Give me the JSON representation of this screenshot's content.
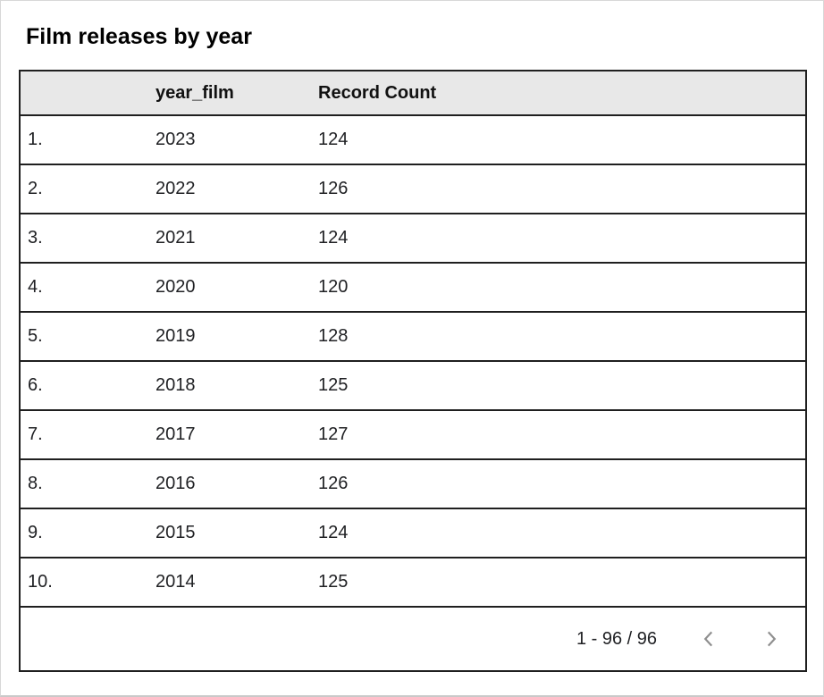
{
  "card": {
    "title": "Film releases by year"
  },
  "table": {
    "header": {
      "index_label": "",
      "columns": [
        "year_film",
        "Record Count"
      ]
    },
    "rows": [
      {
        "num": "1.",
        "year": "2023",
        "count": "124"
      },
      {
        "num": "2.",
        "year": "2022",
        "count": "126"
      },
      {
        "num": "3.",
        "year": "2021",
        "count": "124"
      },
      {
        "num": "4.",
        "year": "2020",
        "count": "120"
      },
      {
        "num": "5.",
        "year": "2019",
        "count": "128"
      },
      {
        "num": "6.",
        "year": "2018",
        "count": "125"
      },
      {
        "num": "7.",
        "year": "2017",
        "count": "127"
      },
      {
        "num": "8.",
        "year": "2016",
        "count": "126"
      },
      {
        "num": "9.",
        "year": "2015",
        "count": "124"
      },
      {
        "num": "10.",
        "year": "2014",
        "count": "125"
      }
    ]
  },
  "pagination": {
    "range": "1 - 96 / 96",
    "prev_icon": "chevron-left",
    "next_icon": "chevron-right"
  },
  "colors": {
    "header_bg": "#e8e8e8",
    "table_border": "#1f1f1f",
    "card_border": "#d8d8d8",
    "cell_text": "#202124",
    "header_text": "#111111",
    "chevron": "#8f8f8f"
  },
  "chart_data": {
    "type": "table",
    "title": "Film releases by year",
    "columns": [
      "year_film",
      "Record Count"
    ],
    "rows": [
      [
        2023,
        124
      ],
      [
        2022,
        126
      ],
      [
        2021,
        124
      ],
      [
        2020,
        120
      ],
      [
        2019,
        128
      ],
      [
        2018,
        125
      ],
      [
        2017,
        127
      ],
      [
        2016,
        126
      ],
      [
        2015,
        124
      ],
      [
        2014,
        125
      ]
    ],
    "pagination_label": "1 - 96 / 96",
    "total_records": 96
  }
}
